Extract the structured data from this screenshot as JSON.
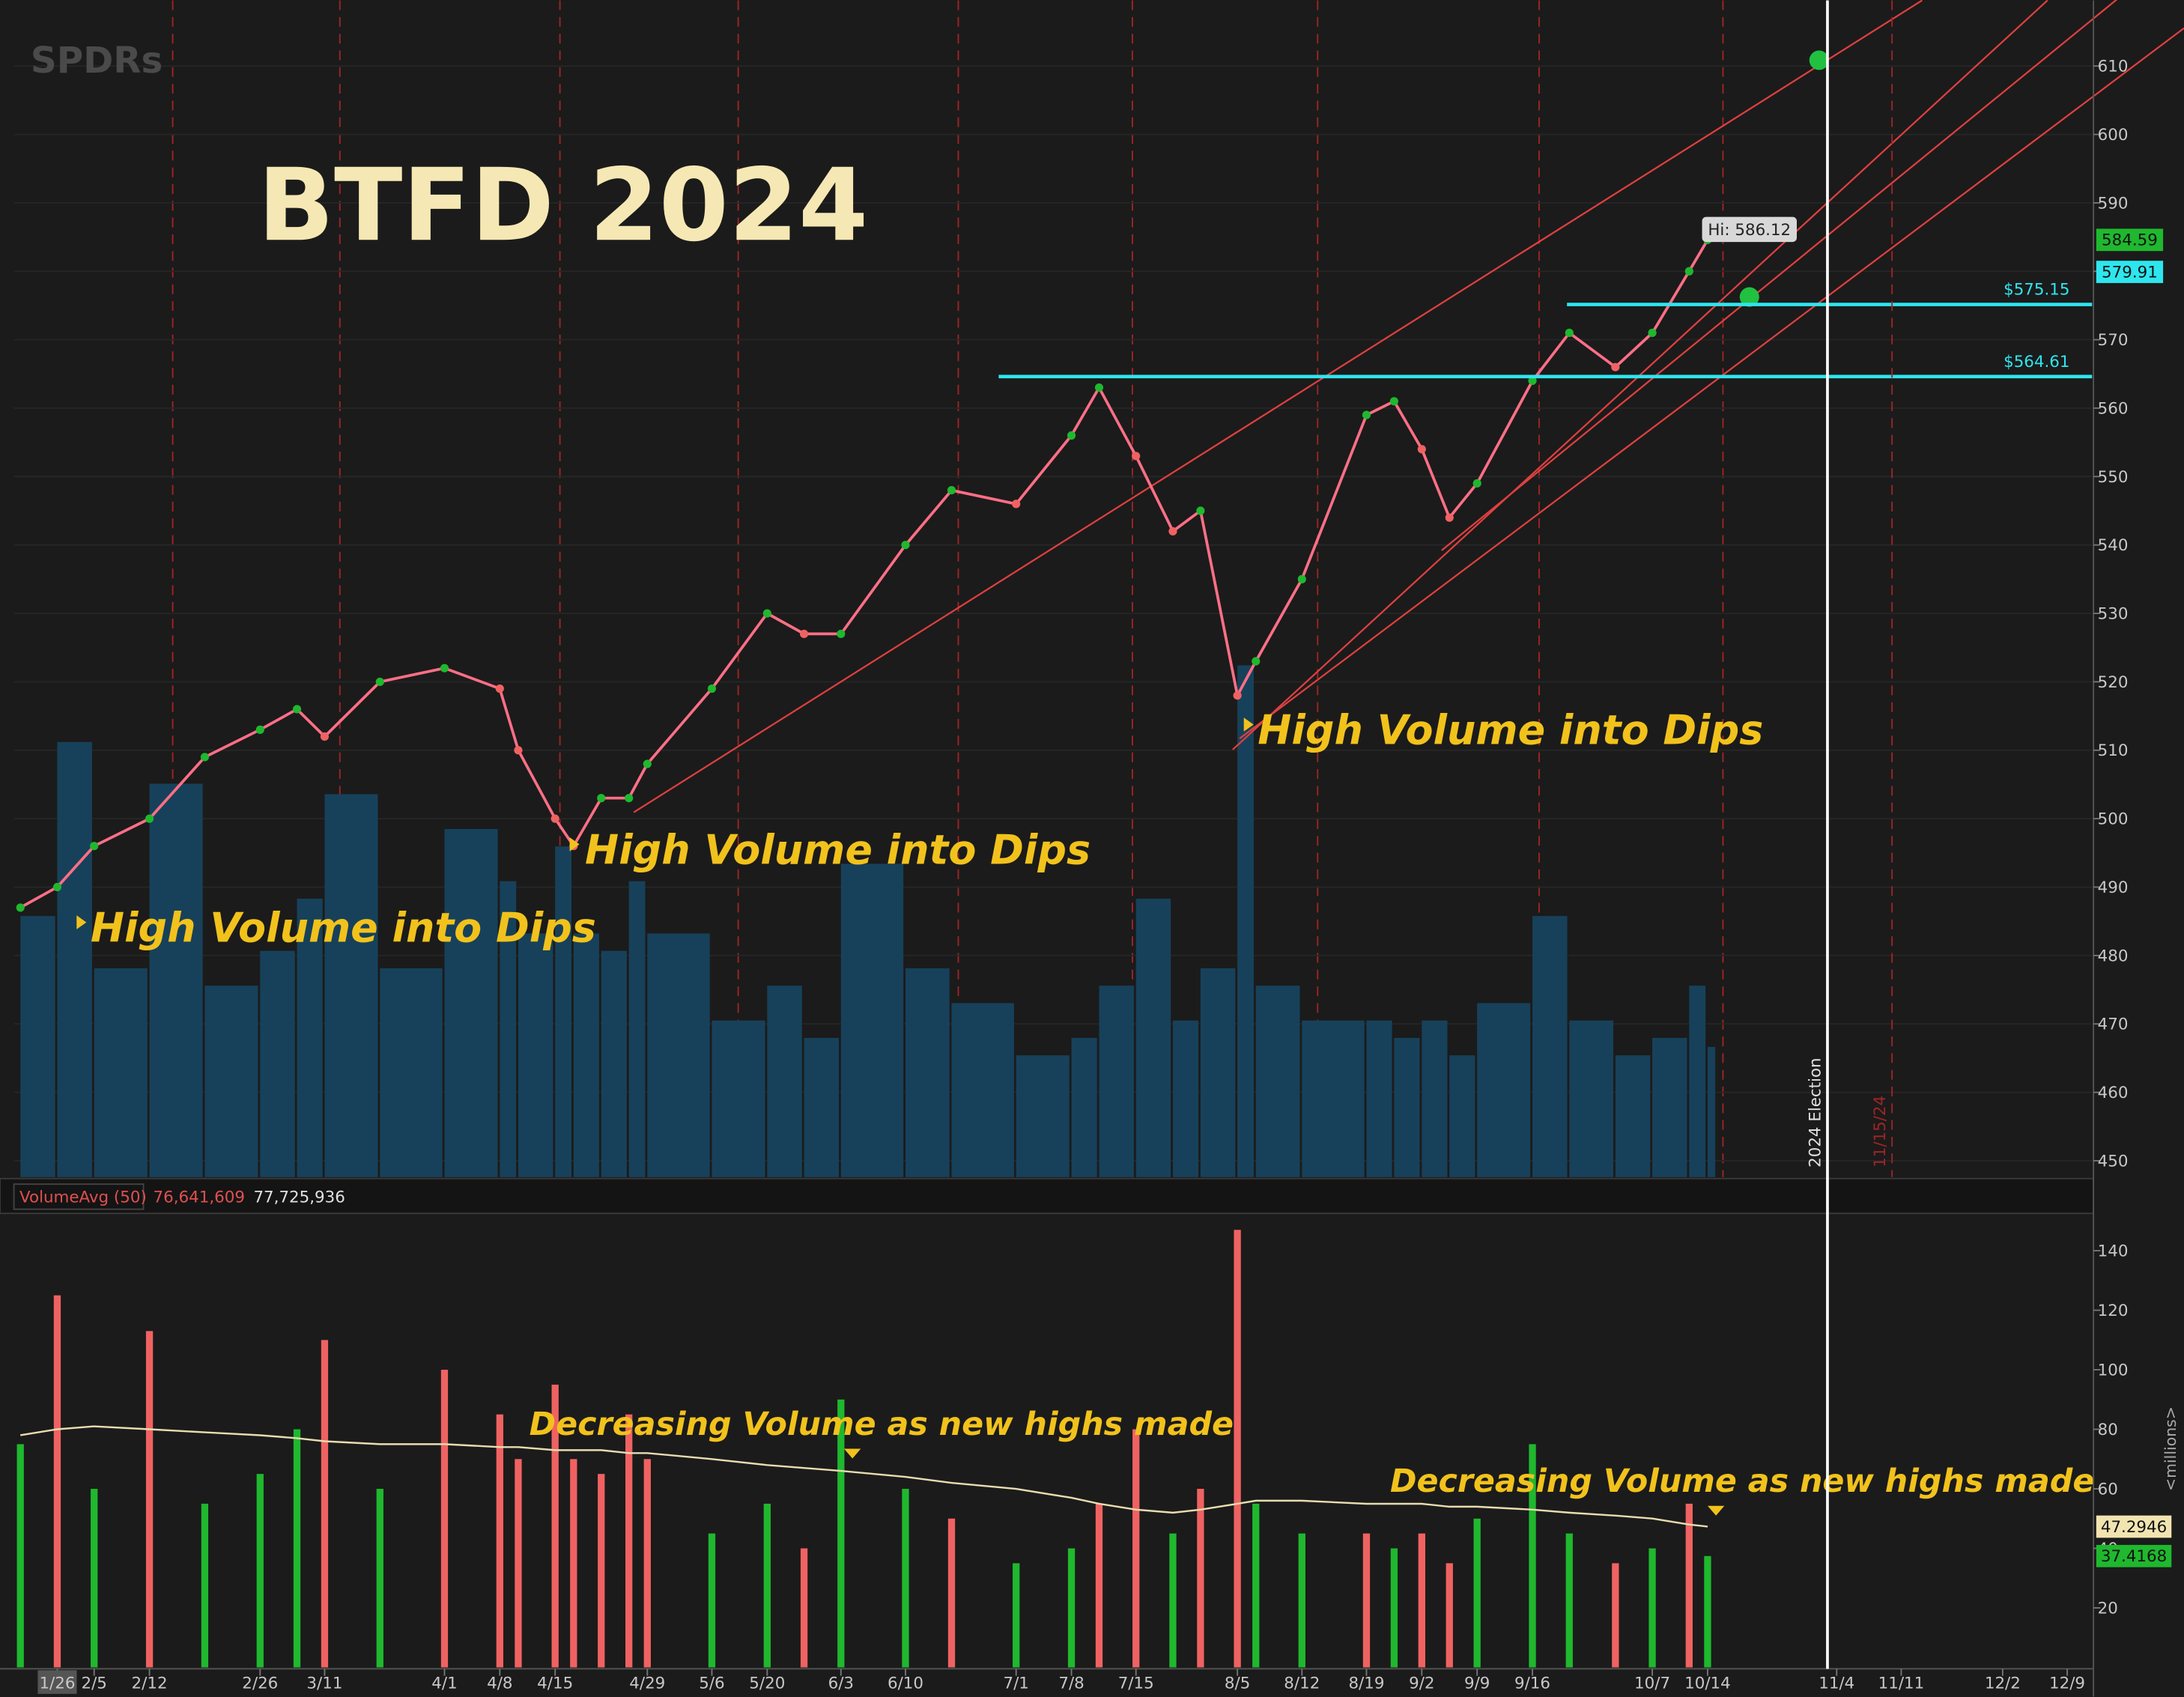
{
  "chart_data": [
    {
      "type": "line",
      "title": "BTFD 2024",
      "brand": "SPDRs",
      "color": "#ff6f86",
      "x": [
        -4,
        0,
        4,
        10,
        16,
        22,
        26,
        29,
        35,
        42,
        48,
        50,
        54,
        56,
        59,
        62,
        64,
        71,
        77,
        81,
        85,
        92,
        97,
        104,
        110,
        113,
        117,
        121,
        124,
        128,
        130,
        135,
        142,
        145,
        148,
        151,
        154,
        160,
        164,
        169,
        173,
        177,
        179
      ],
      "values": [
        487,
        490,
        496,
        500,
        509,
        513,
        516,
        512,
        520,
        522,
        519,
        510,
        500,
        496,
        503,
        503,
        508,
        519,
        530,
        527,
        527,
        540,
        548,
        546,
        556,
        563,
        553,
        542,
        545,
        518,
        523,
        535,
        559,
        561,
        554,
        544,
        549,
        564,
        571,
        566,
        571,
        580,
        584.59
      ],
      "xlim": [
        -4.7,
        220.7
      ],
      "ylim": [
        447.6,
        619.6
      ],
      "yticks": [
        450,
        460,
        470,
        480,
        490,
        500,
        510,
        520,
        530,
        540,
        550,
        560,
        570,
        580,
        590,
        600,
        610
      ],
      "hi": {
        "value": 586.12,
        "label": "Hi: 586.12"
      },
      "markers": [
        {
          "value": 584.59,
          "label": "584.59"
        },
        {
          "value": 579.91,
          "label": "579.91"
        }
      ],
      "levels": [
        {
          "value": 575.15,
          "label": "$575.15"
        },
        {
          "value": 564.61,
          "label": "$564.61"
        }
      ],
      "events": [
        {
          "value": 192,
          "label": "2024 Election"
        },
        {
          "value": 199,
          "label": "11/15/24"
        }
      ],
      "annotations": [
        "High Volume into Dips",
        "High Volume into Dips",
        "High Volume into Dips"
      ]
    },
    {
      "type": "bar",
      "title": "VolumeAvg (50)",
      "readouts": [
        "76,641,609",
        "77,725,936"
      ],
      "y_label": "<millions>",
      "x": [
        -4,
        0,
        4,
        10,
        16,
        22,
        26,
        29,
        35,
        42,
        48,
        50,
        54,
        56,
        59,
        62,
        64,
        71,
        77,
        81,
        85,
        92,
        97,
        104,
        110,
        113,
        117,
        121,
        124,
        128,
        130,
        135,
        142,
        145,
        148,
        151,
        154,
        160,
        164,
        169,
        173,
        177,
        179
      ],
      "values": [
        75,
        125,
        60,
        113,
        55,
        65,
        80,
        110,
        60,
        100,
        85,
        70,
        95,
        70,
        65,
        85,
        70,
        45,
        55,
        40,
        90,
        60,
        50,
        35,
        40,
        55,
        80,
        45,
        60,
        147,
        55,
        45,
        45,
        40,
        45,
        35,
        50,
        75,
        45,
        35,
        40,
        55,
        37.4168
      ],
      "colors": [
        "#1fb82e",
        "#f06262",
        "#1fb82e",
        "#f06262",
        "#1fb82e",
        "#1fb82e",
        "#1fb82e",
        "#f06262",
        "#1fb82e",
        "#f06262",
        "#f06262",
        "#f06262",
        "#f06262",
        "#f06262",
        "#f06262",
        "#f06262",
        "#f06262",
        "#1fb82e",
        "#1fb82e",
        "#f06262",
        "#1fb82e",
        "#1fb82e",
        "#f06262",
        "#1fb82e",
        "#1fb82e",
        "#f06262",
        "#f06262",
        "#1fb82e",
        "#f06262",
        "#f06262",
        "#1fb82e",
        "#1fb82e",
        "#f06262",
        "#1fb82e",
        "#f06262",
        "#f06262",
        "#1fb82e",
        "#1fb82e",
        "#1fb82e",
        "#f06262",
        "#1fb82e",
        "#f06262",
        "#1fb82e"
      ],
      "avg_color": "#e8dcb0",
      "avg_values": [
        78,
        80,
        81,
        80,
        79,
        78,
        77,
        76,
        75,
        75,
        74,
        74,
        73,
        73,
        73,
        72,
        72,
        70,
        68,
        67,
        66,
        64,
        62,
        60,
        57,
        55,
        53,
        52,
        53,
        55,
        56,
        56,
        55,
        55,
        55,
        54,
        54,
        53,
        52,
        51,
        50,
        48,
        47.2946
      ],
      "last_labels": [
        {
          "value": 47.2946,
          "label": "47.2946"
        },
        {
          "value": 37.4168,
          "label": "37.4168"
        }
      ],
      "xlim": [
        -4.7,
        220.7
      ],
      "ylim": [
        0,
        153
      ],
      "yticks": [
        20,
        40,
        60,
        80,
        100,
        120,
        140
      ],
      "xticks": [
        {
          "value": 0,
          "label": "1/26"
        },
        {
          "value": 4,
          "label": "2/5"
        },
        {
          "value": 10,
          "label": "2/12"
        },
        {
          "value": 22,
          "label": "2/26"
        },
        {
          "value": 29,
          "label": "3/11"
        },
        {
          "value": 42,
          "label": "4/1"
        },
        {
          "value": 48,
          "label": "4/8"
        },
        {
          "value": 54,
          "label": "4/15"
        },
        {
          "value": 64,
          "label": "4/29"
        },
        {
          "value": 71,
          "label": "5/6"
        },
        {
          "value": 77,
          "label": "5/20"
        },
        {
          "value": 85,
          "label": "6/3"
        },
        {
          "value": 92,
          "label": "6/10"
        },
        {
          "value": 104,
          "label": "7/1"
        },
        {
          "value": 110,
          "label": "7/8"
        },
        {
          "value": 117,
          "label": "7/15"
        },
        {
          "value": 128,
          "label": "8/5"
        },
        {
          "value": 135,
          "label": "8/12"
        },
        {
          "value": 142,
          "label": "8/19"
        },
        {
          "value": 148,
          "label": "9/2"
        },
        {
          "value": 154,
          "label": "9/9"
        },
        {
          "value": 160,
          "label": "9/16"
        },
        {
          "value": 173,
          "label": "10/7"
        },
        {
          "value": 179,
          "label": "10/14"
        },
        {
          "value": 193,
          "label": "11/4"
        },
        {
          "value": 200,
          "label": "11/11"
        },
        {
          "value": 211,
          "label": "12/2"
        },
        {
          "value": 218,
          "label": "12/9"
        }
      ],
      "annotations": [
        "Decreasing Volume as new highs made",
        "Decreasing Volume as new highs made"
      ]
    }
  ]
}
